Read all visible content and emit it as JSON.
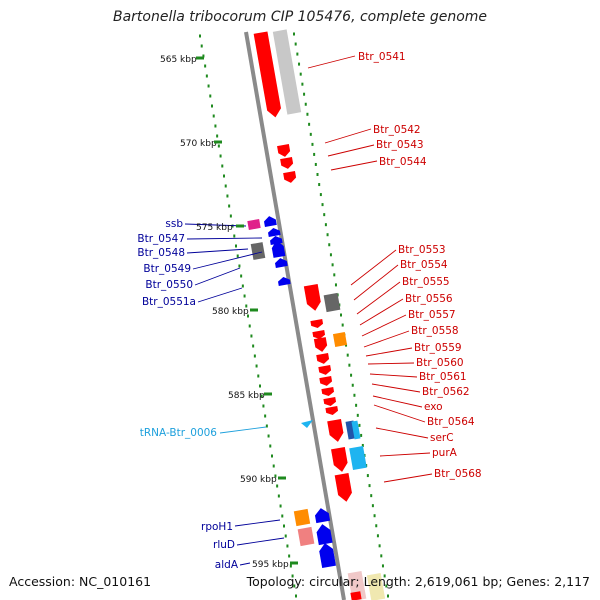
{
  "title": "Bartonella tribocorum CIP 105476, complete genome",
  "footer": {
    "accession": "Accession: NC_010161",
    "summary": "Topology: circular; Length: 2,619,061 bp; Genes: 2,117"
  },
  "colors": {
    "backbone": "#8a8a8a",
    "tick": "#1e8a1e",
    "gene_red": "#ff0000",
    "gene_blue": "#0000ee",
    "gene_gray": "#666666",
    "gene_lightgray": "#c8c8c8",
    "gene_orange": "#ff8c00",
    "gene_magenta": "#e0208a",
    "gene_cyan": "#1eb4f0",
    "gene_pink": "#f08080",
    "label_red": "#cc0000",
    "label_blue": "#000099",
    "label_cyan": "#1ea0dc"
  },
  "ruler": [
    {
      "label": "565 kbp"
    },
    {
      "label": "570 kbp"
    },
    {
      "label": "575 kbp"
    },
    {
      "label": "580 kbp"
    },
    {
      "label": "585 kbp"
    },
    {
      "label": "590 kbp"
    },
    {
      "label": "595 kbp"
    }
  ],
  "right_labels": [
    {
      "text": "Btr_0541"
    },
    {
      "text": "Btr_0542"
    },
    {
      "text": "Btr_0543"
    },
    {
      "text": "Btr_0544"
    },
    {
      "text": "Btr_0553"
    },
    {
      "text": "Btr_0554"
    },
    {
      "text": "Btr_0555"
    },
    {
      "text": "Btr_0556"
    },
    {
      "text": "Btr_0557"
    },
    {
      "text": "Btr_0558"
    },
    {
      "text": "Btr_0559"
    },
    {
      "text": "Btr_0560"
    },
    {
      "text": "Btr_0561"
    },
    {
      "text": "Btr_0562"
    },
    {
      "text": "exo"
    },
    {
      "text": "Btr_0564"
    },
    {
      "text": "serC"
    },
    {
      "text": "purA"
    },
    {
      "text": "Btr_0568"
    }
  ],
  "left_labels": [
    {
      "text": "ssb",
      "color": "blue"
    },
    {
      "text": "Btr_0547",
      "color": "blue"
    },
    {
      "text": "Btr_0548",
      "color": "blue"
    },
    {
      "text": "Btr_0549",
      "color": "blue"
    },
    {
      "text": "Btr_0550",
      "color": "blue"
    },
    {
      "text": "Btr_0551a",
      "color": "blue"
    },
    {
      "text": "tRNA-Btr_0006",
      "color": "cyan"
    },
    {
      "text": "rpoH1",
      "color": "blue"
    },
    {
      "text": "rluD",
      "color": "blue"
    },
    {
      "text": "aldA",
      "color": "blue"
    }
  ]
}
